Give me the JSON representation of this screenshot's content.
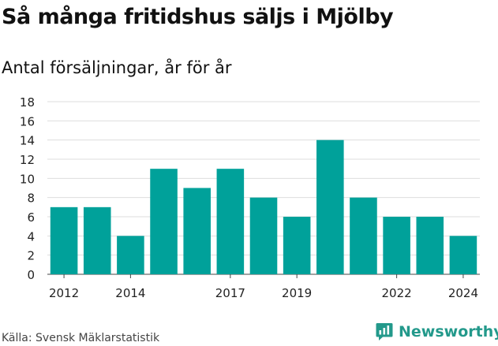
{
  "title": "Så många fritidshus säljs i Mjölby",
  "subtitle": "Antal försäljningar, år för år",
  "source": "Källa: Svensk Mäklarstatistik",
  "brand": {
    "name": "Newsworthy",
    "icon": "newsworthy-logo-icon",
    "color": "#23998b"
  },
  "chart_data": {
    "type": "bar",
    "categories": [
      "2012",
      "2013",
      "2014",
      "2015",
      "2016",
      "2017",
      "2018",
      "2019",
      "2020",
      "2021",
      "2022",
      "2023",
      "2024"
    ],
    "values": [
      7,
      7,
      4,
      11,
      9,
      11,
      8,
      6,
      14,
      8,
      6,
      6,
      4
    ],
    "xtick_labels": [
      "2012",
      "",
      "2014",
      "",
      "",
      "2017",
      "",
      "2019",
      "",
      "",
      "2022",
      "",
      "2024"
    ],
    "ylim": [
      0,
      18
    ],
    "yticks": [
      0,
      2,
      4,
      6,
      8,
      10,
      12,
      14,
      16,
      18
    ],
    "grid": true,
    "bar_color": "#00a19a",
    "grid_color": "#dddddd"
  }
}
